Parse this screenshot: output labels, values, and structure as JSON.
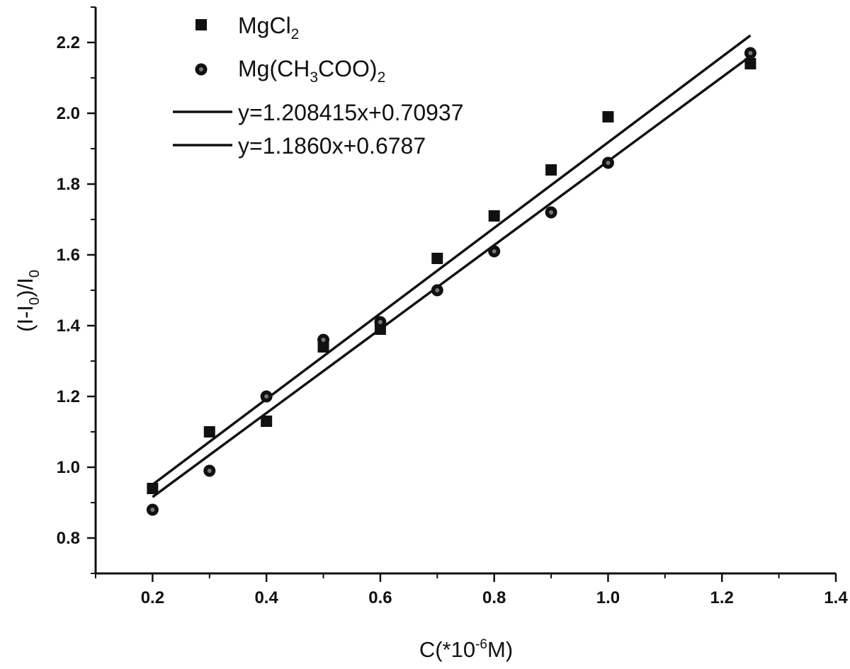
{
  "chart_data": {
    "type": "scatter",
    "xlabel": {
      "main": "C(*10",
      "sup": "-6",
      "tail": "M)"
    },
    "ylabel": {
      "a": "(I-I",
      "a_sub": "0",
      "b": ")/I",
      "b_sub": "0"
    },
    "xlim": [
      0.1,
      1.4
    ],
    "ylim": [
      0.7,
      2.3
    ],
    "x_ticks": [
      0.2,
      0.4,
      0.6,
      0.8,
      1.0,
      1.2,
      1.4
    ],
    "x_tick_labels": [
      "0.2",
      "0.4",
      "0.6",
      "0.8",
      "1.0",
      "1.2",
      "1.4"
    ],
    "y_ticks": [
      0.8,
      1.0,
      1.2,
      1.4,
      1.6,
      1.8,
      2.0,
      2.2
    ],
    "y_tick_labels": [
      "0.8",
      "1.0",
      "1.2",
      "1.4",
      "1.6",
      "1.8",
      "2.0",
      "2.2"
    ],
    "grid": false,
    "legend_position": "top-left",
    "series": [
      {
        "name": "MgCl",
        "name_sub": "2",
        "marker": "square",
        "x": [
          0.2,
          0.3,
          0.4,
          0.5,
          0.6,
          0.7,
          0.8,
          0.9,
          1.0,
          1.25
        ],
        "y": [
          0.94,
          1.1,
          1.13,
          1.34,
          1.39,
          1.59,
          1.71,
          1.84,
          1.99,
          2.14
        ]
      },
      {
        "name": "Mg(CH",
        "name_sub": "3",
        "name_tail": "COO)",
        "name_sub2": "2",
        "marker": "circle",
        "x": [
          0.2,
          0.3,
          0.4,
          0.5,
          0.6,
          0.7,
          0.8,
          0.9,
          1.0,
          1.25
        ],
        "y": [
          0.88,
          0.99,
          1.2,
          1.36,
          1.41,
          1.5,
          1.61,
          1.72,
          1.86,
          2.17
        ]
      }
    ],
    "fits": [
      {
        "label": "y=1.208415x+0.70937",
        "slope": 1.208415,
        "intercept": 0.70937,
        "x_range": [
          0.2,
          1.25
        ]
      },
      {
        "label": "y=1.1860x+0.6787",
        "slope": 1.186,
        "intercept": 0.6787,
        "x_range": [
          0.2,
          1.25
        ]
      }
    ]
  }
}
